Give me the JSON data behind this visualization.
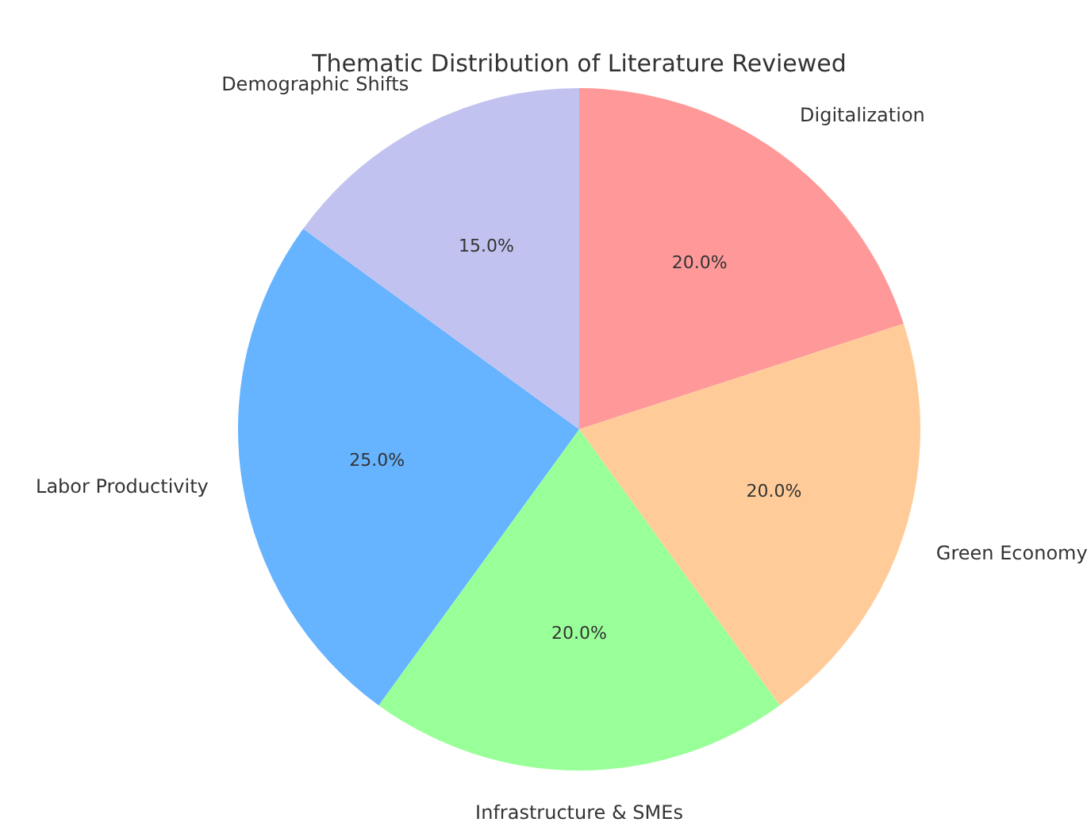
{
  "chart_data": {
    "type": "pie",
    "title": "Thematic Distribution of Literature Reviewed",
    "categories": [
      "Digitalization",
      "Green Economy",
      "Infrastructure & SMEs",
      "Labor Productivity",
      "Demographic Shifts"
    ],
    "values": [
      20,
      20,
      20,
      25,
      15
    ],
    "colors": [
      "#ff9999",
      "#ffcc99",
      "#99ff99",
      "#66b3ff",
      "#c2c2f0"
    ],
    "value_labels": [
      "20.0%",
      "20.0%",
      "20.0%",
      "25.0%",
      "15.0%"
    ],
    "legend": false
  }
}
